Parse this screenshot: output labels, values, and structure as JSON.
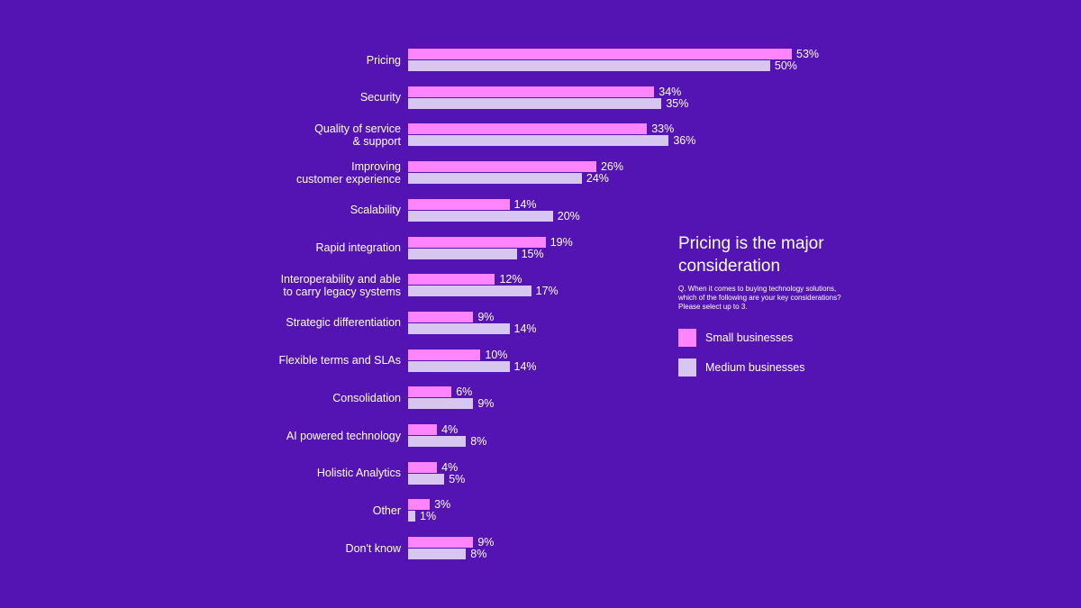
{
  "chart_data": {
    "type": "bar",
    "orientation": "horizontal",
    "categories": [
      "Pricing",
      "Security",
      "Quality of service\n& support",
      "Improving\ncustomer experience",
      "Scalability",
      "Rapid integration",
      "Interoperability and able\nto carry legacy systems",
      "Strategic differentiation",
      "Flexible terms and SLAs",
      "Consolidation",
      "AI powered technology",
      "Holistic Analytics",
      "Other",
      "Don't know"
    ],
    "series": [
      {
        "name": "Small businesses",
        "color": "#ff85ff",
        "values": [
          53,
          34,
          33,
          26,
          14,
          19,
          12,
          9,
          10,
          6,
          4,
          4,
          3,
          9
        ],
        "labels": [
          "53%",
          "34%",
          "33%",
          "26%",
          "14%",
          "19%",
          "12%",
          "9%",
          "10%",
          "6%",
          "4%",
          "4%",
          "3%",
          "9%"
        ]
      },
      {
        "name": "Medium businesses",
        "color": "#d6c6f0",
        "values": [
          50,
          35,
          36,
          24,
          20,
          15,
          17,
          14,
          14,
          9,
          8,
          5,
          1,
          8
        ],
        "labels": [
          "50%",
          "35%",
          "36%",
          "24%",
          "20%",
          "15%",
          "17%",
          "14%",
          "14%",
          "9%",
          "8%",
          "5%",
          "1%",
          "8%"
        ]
      }
    ],
    "title": "Pricing is the major consideration",
    "subtitle": "Q. When it comes to buying technology solutions, which of the following are your key considerations? Please select up to 3.",
    "xlim": [
      0,
      53
    ],
    "grid": false,
    "legend_position": "right"
  }
}
